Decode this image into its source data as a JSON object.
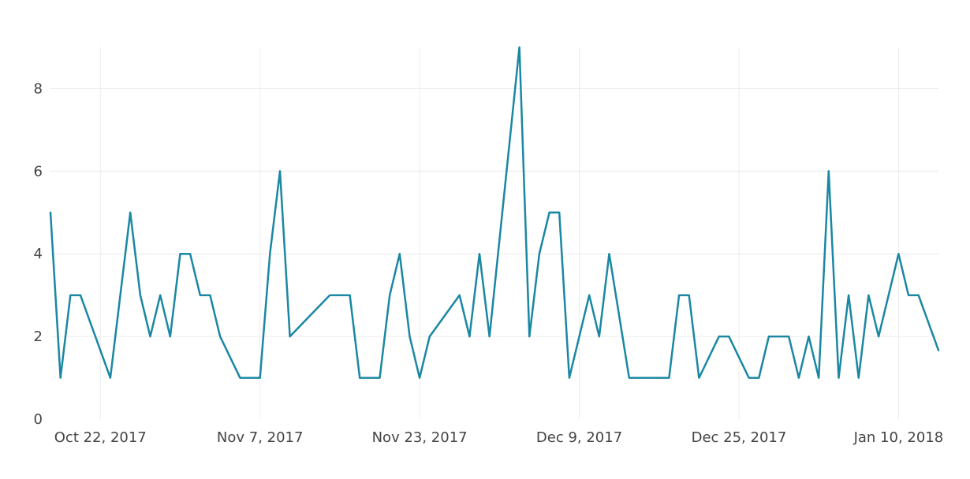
{
  "chart_data": {
    "type": "line",
    "title": "",
    "xlabel": "",
    "ylabel": "",
    "grid": true,
    "legend": "none",
    "color": "#1a87a3",
    "xlim": [
      "2017-10-17",
      "2018-01-14"
    ],
    "ylim": [
      0,
      9
    ],
    "y_ticks": [
      0,
      2,
      4,
      6,
      8
    ],
    "x_ticks": [
      {
        "date": "2017-10-22",
        "label": "Oct 22, 2017"
      },
      {
        "date": "2017-11-07",
        "label": "Nov 7, 2017"
      },
      {
        "date": "2017-11-23",
        "label": "Nov 23, 2017"
      },
      {
        "date": "2017-12-09",
        "label": "Dec 9, 2017"
      },
      {
        "date": "2017-12-25",
        "label": "Dec 25, 2017"
      },
      {
        "date": "2018-01-10",
        "label": "Jan 10, 2018"
      }
    ],
    "series": [
      {
        "x": [
          "2017-10-17",
          "2017-10-18",
          "2017-10-19",
          "2017-10-20",
          "2017-10-23",
          "2017-10-25",
          "2017-10-26",
          "2017-10-27",
          "2017-10-28",
          "2017-10-29",
          "2017-10-30",
          "2017-10-31",
          "2017-11-01",
          "2017-11-02",
          "2017-11-03",
          "2017-11-05",
          "2017-11-07",
          "2017-11-08",
          "2017-11-09",
          "2017-11-10",
          "2017-11-14",
          "2017-11-16",
          "2017-11-17",
          "2017-11-19",
          "2017-11-20",
          "2017-11-21",
          "2017-11-22",
          "2017-11-23",
          "2017-11-24",
          "2017-11-27",
          "2017-11-28",
          "2017-11-29",
          "2017-11-30",
          "2017-12-03",
          "2017-12-04",
          "2017-12-05",
          "2017-12-06",
          "2017-12-07",
          "2017-12-08",
          "2017-12-10",
          "2017-12-11",
          "2017-12-12",
          "2017-12-14",
          "2017-12-17",
          "2017-12-18",
          "2017-12-19",
          "2017-12-20",
          "2017-12-21",
          "2017-12-23",
          "2017-12-24",
          "2017-12-26",
          "2017-12-27",
          "2017-12-28",
          "2017-12-30",
          "2017-12-31",
          "2018-01-01",
          "2018-01-02",
          "2018-01-03",
          "2018-01-04",
          "2018-01-05",
          "2018-01-06",
          "2018-01-07",
          "2018-01-08",
          "2018-01-10",
          "2018-01-11",
          "2018-01-12",
          "2018-01-15"
        ],
        "y": [
          5,
          1,
          3,
          3,
          1,
          5,
          3,
          2,
          3,
          2,
          4,
          4,
          3,
          3,
          2,
          1,
          1,
          4,
          6,
          2,
          3,
          3,
          1,
          1,
          3,
          4,
          2,
          1,
          2,
          3,
          2,
          4,
          2,
          9,
          2,
          4,
          5,
          5,
          1,
          3,
          2,
          4,
          1,
          1,
          1,
          3,
          3,
          1,
          2,
          2,
          1,
          1,
          2,
          2,
          1,
          2,
          1,
          6,
          1,
          3,
          1,
          3,
          2,
          4,
          3,
          3,
          1
        ]
      }
    ]
  }
}
